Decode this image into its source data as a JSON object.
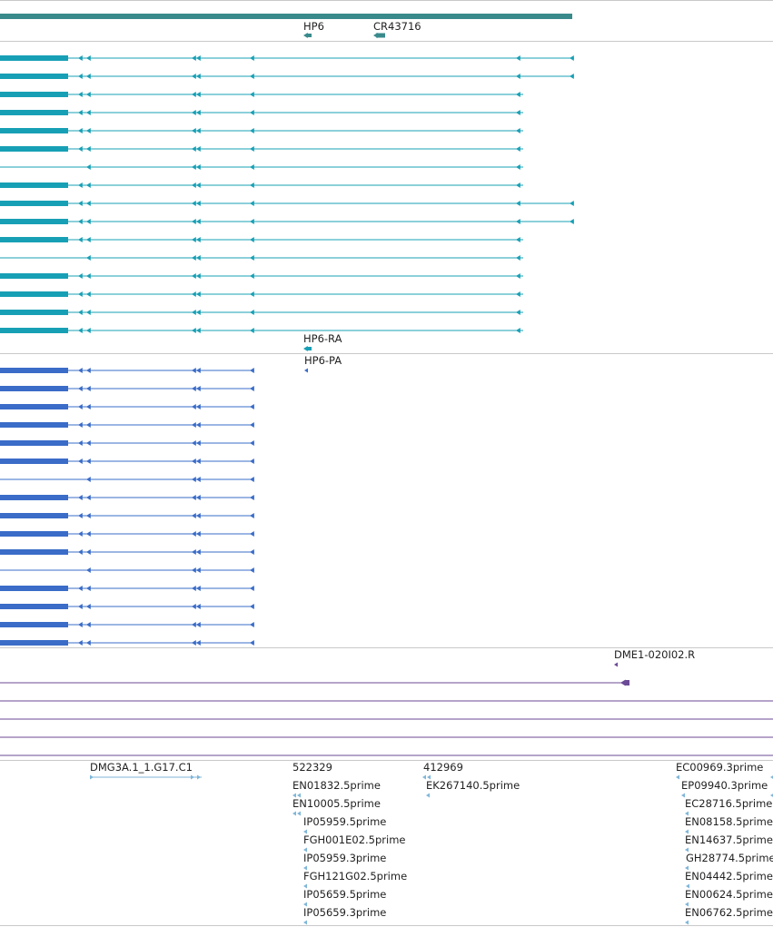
{
  "colors": {
    "gene": "#3a8a8c",
    "transcript": "#17a0b5",
    "protein": "#3a6cc8",
    "clone": "#6b4a96",
    "est": "#7fb6d9",
    "divider": "#c9c9c9",
    "text": "#222222"
  },
  "gene_track": {
    "hp6_label": "HP6",
    "cr43716_label": "CR43716"
  },
  "transcript_track": {
    "feature_label": "HP6-RA",
    "rows": 16
  },
  "protein_track": {
    "feature_label": "HP6-PA",
    "rows": 16
  },
  "clone_track": {
    "feature_label": "DME1-020I02.R"
  },
  "est_track": {
    "labels": {
      "dmg3a": "DMG3A.1_1.G17.C1",
      "c522329": "522329",
      "en01832": "EN01832.5prime",
      "en10005": "EN10005.5prime",
      "ip05959_5": "IP05959.5prime",
      "fgh001e02": "FGH001E02.5prime",
      "ip05959_3": "IP05959.3prime",
      "fgh121g02": "FGH121G02.5prime",
      "ip05659_5": "IP05659.5prime",
      "ip05659_3": "IP05659.3prime",
      "c412969": "412969",
      "ek267140": "EK267140.5prime",
      "ec00969": "EC00969.3prime",
      "ep09940": "EP09940.3prime",
      "ec28716": "EC28716.5prime",
      "en08158": "EN08158.5prime",
      "en14637": "EN14637.5prime",
      "gh28774": "GH28774.5prime",
      "en04442": "EN04442.5prime",
      "en00624": "EN00624.5prime",
      "en06762": "EN06762.5prime"
    }
  }
}
